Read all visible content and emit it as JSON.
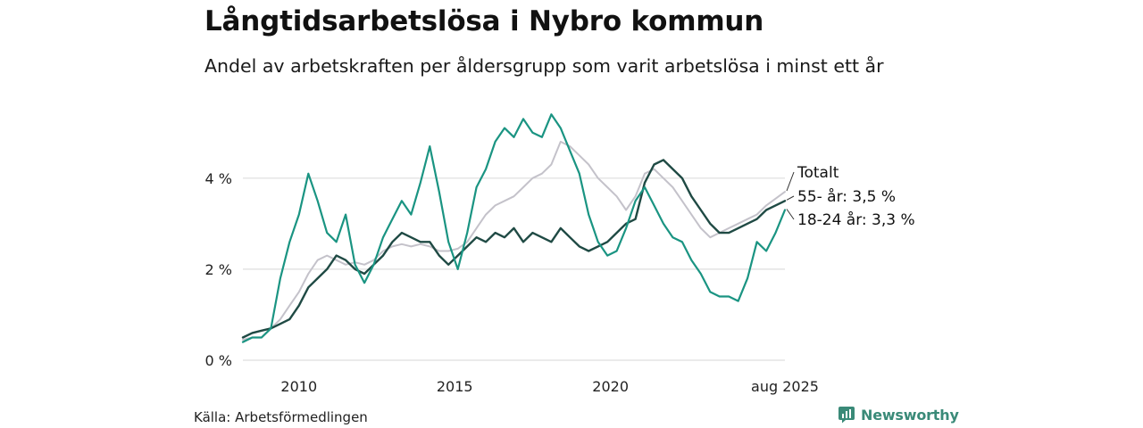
{
  "title": "Långtidsarbetslösa i Nybro kommun",
  "subtitle": "Andel av arbetskraften per åldersgrupp som varit arbetslösa i minst ett år",
  "source": "Källa: Arbetsförmedlingen",
  "brand": "Newsworthy",
  "chart_data": {
    "type": "line",
    "x_start": 2008.2,
    "x_end": 2025.6,
    "y_range": [
      0,
      5.7
    ],
    "y_ticks": [
      0,
      2,
      4
    ],
    "y_tick_labels": [
      "0 %",
      "2 %",
      "4 %"
    ],
    "x_ticks": [
      2010,
      2015,
      2020,
      2025.6
    ],
    "x_tick_labels": [
      "2010",
      "2015",
      "2020",
      "aug 2025"
    ],
    "grid": true,
    "series": [
      {
        "name": "Totalt",
        "label": "Totalt",
        "color": "#c4c2ca",
        "width": 2,
        "x": [
          2008.2,
          2008.5,
          2008.8,
          2009.1,
          2009.4,
          2009.7,
          2010.0,
          2010.3,
          2010.6,
          2010.9,
          2011.2,
          2011.5,
          2011.8,
          2012.1,
          2012.4,
          2012.7,
          2013.0,
          2013.3,
          2013.6,
          2013.9,
          2014.2,
          2014.5,
          2014.8,
          2015.1,
          2015.4,
          2015.7,
          2016.0,
          2016.3,
          2016.6,
          2016.9,
          2017.2,
          2017.5,
          2017.8,
          2018.1,
          2018.4,
          2018.7,
          2019.0,
          2019.3,
          2019.6,
          2019.9,
          2020.2,
          2020.5,
          2020.8,
          2021.1,
          2021.4,
          2021.7,
          2022.0,
          2022.3,
          2022.6,
          2022.9,
          2023.2,
          2023.5,
          2023.8,
          2024.1,
          2024.4,
          2024.7,
          2025.0,
          2025.3,
          2025.6
        ],
        "values": [
          0.45,
          0.5,
          0.5,
          0.7,
          0.9,
          1.2,
          1.5,
          1.9,
          2.2,
          2.3,
          2.2,
          2.1,
          2.15,
          2.1,
          2.2,
          2.4,
          2.5,
          2.55,
          2.5,
          2.55,
          2.5,
          2.4,
          2.4,
          2.45,
          2.6,
          2.9,
          3.2,
          3.4,
          3.5,
          3.6,
          3.8,
          4.0,
          4.1,
          4.3,
          4.8,
          4.7,
          4.5,
          4.3,
          4.0,
          3.8,
          3.6,
          3.3,
          3.6,
          4.1,
          4.2,
          4.0,
          3.8,
          3.5,
          3.2,
          2.9,
          2.7,
          2.8,
          2.9,
          3.0,
          3.1,
          3.2,
          3.4,
          3.55,
          3.7
        ]
      },
      {
        "name": "55- år",
        "label": "55- år: 3,5 %",
        "color": "#1f4a44",
        "width": 2.4,
        "x": [
          2008.2,
          2008.5,
          2008.8,
          2009.1,
          2009.4,
          2009.7,
          2010.0,
          2010.3,
          2010.6,
          2010.9,
          2011.2,
          2011.5,
          2011.8,
          2012.1,
          2012.4,
          2012.7,
          2013.0,
          2013.3,
          2013.6,
          2013.9,
          2014.2,
          2014.5,
          2014.8,
          2015.1,
          2015.4,
          2015.7,
          2016.0,
          2016.3,
          2016.6,
          2016.9,
          2017.2,
          2017.5,
          2017.8,
          2018.1,
          2018.4,
          2018.7,
          2019.0,
          2019.3,
          2019.6,
          2019.9,
          2020.2,
          2020.5,
          2020.8,
          2021.1,
          2021.4,
          2021.7,
          2022.0,
          2022.3,
          2022.6,
          2022.9,
          2023.2,
          2023.5,
          2023.8,
          2024.1,
          2024.4,
          2024.7,
          2025.0,
          2025.3,
          2025.6
        ],
        "values": [
          0.5,
          0.6,
          0.65,
          0.7,
          0.8,
          0.9,
          1.2,
          1.6,
          1.8,
          2.0,
          2.3,
          2.2,
          2.0,
          1.9,
          2.1,
          2.3,
          2.6,
          2.8,
          2.7,
          2.6,
          2.6,
          2.3,
          2.1,
          2.3,
          2.5,
          2.7,
          2.6,
          2.8,
          2.7,
          2.9,
          2.6,
          2.8,
          2.7,
          2.6,
          2.9,
          2.7,
          2.5,
          2.4,
          2.5,
          2.6,
          2.8,
          3.0,
          3.1,
          3.9,
          4.3,
          4.4,
          4.2,
          4.0,
          3.6,
          3.3,
          3.0,
          2.8,
          2.8,
          2.9,
          3.0,
          3.1,
          3.3,
          3.4,
          3.5
        ]
      },
      {
        "name": "18-24 år",
        "label": "18-24 år: 3,3 %",
        "color": "#1a9482",
        "width": 2.2,
        "x": [
          2008.2,
          2008.5,
          2008.8,
          2009.1,
          2009.4,
          2009.7,
          2010.0,
          2010.3,
          2010.6,
          2010.9,
          2011.2,
          2011.5,
          2011.8,
          2012.1,
          2012.4,
          2012.7,
          2013.0,
          2013.3,
          2013.6,
          2013.9,
          2014.2,
          2014.5,
          2014.8,
          2015.1,
          2015.4,
          2015.7,
          2016.0,
          2016.3,
          2016.6,
          2016.9,
          2017.2,
          2017.5,
          2017.8,
          2018.1,
          2018.4,
          2018.7,
          2019.0,
          2019.3,
          2019.6,
          2019.9,
          2020.2,
          2020.5,
          2020.8,
          2021.1,
          2021.4,
          2021.7,
          2022.0,
          2022.3,
          2022.6,
          2022.9,
          2023.2,
          2023.5,
          2023.8,
          2024.1,
          2024.4,
          2024.7,
          2025.0,
          2025.3,
          2025.6
        ],
        "values": [
          0.4,
          0.5,
          0.5,
          0.7,
          1.8,
          2.6,
          3.2,
          4.1,
          3.5,
          2.8,
          2.6,
          3.2,
          2.1,
          1.7,
          2.1,
          2.7,
          3.1,
          3.5,
          3.2,
          3.9,
          4.7,
          3.7,
          2.6,
          2.0,
          2.8,
          3.8,
          4.2,
          4.8,
          5.1,
          4.9,
          5.3,
          5.0,
          4.9,
          5.4,
          5.1,
          4.6,
          4.1,
          3.2,
          2.6,
          2.3,
          2.4,
          2.9,
          3.5,
          3.8,
          3.4,
          3.0,
          2.7,
          2.6,
          2.2,
          1.9,
          1.5,
          1.4,
          1.4,
          1.3,
          1.8,
          2.6,
          2.4,
          2.8,
          3.3
        ]
      }
    ]
  },
  "colors": {
    "grid": "#dddddd",
    "axis_text": "#222222",
    "brand": "#3a8a78"
  },
  "icons": {
    "brand_logo": "newsworthy-logo-icon"
  }
}
